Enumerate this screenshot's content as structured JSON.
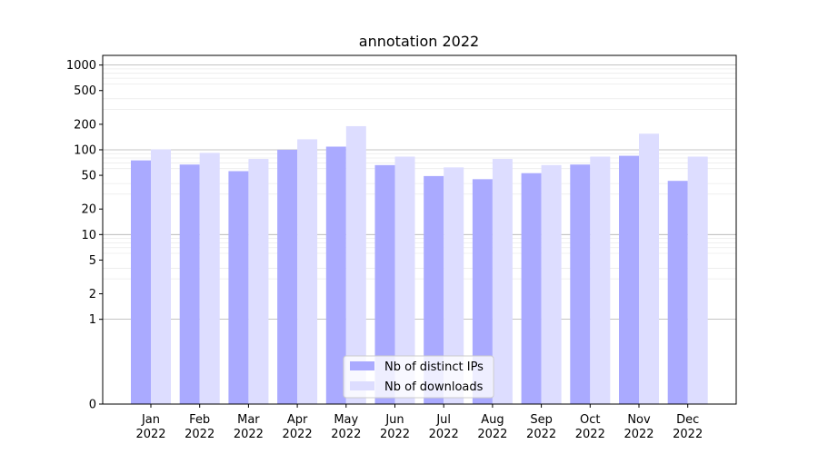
{
  "chart_data": {
    "type": "bar",
    "title": "annotation 2022",
    "xlabel": "",
    "ylabel": "",
    "yscale": "symlog",
    "ylim": [
      0,
      1300
    ],
    "categories": [
      "Jan",
      "Feb",
      "Mar",
      "Apr",
      "May",
      "Jun",
      "Jul",
      "Aug",
      "Sep",
      "Oct",
      "Nov",
      "Dec"
    ],
    "category_year": "2022",
    "yticks": [
      0,
      1,
      2,
      5,
      10,
      20,
      50,
      100,
      200,
      500,
      1000
    ],
    "ytick_labels": [
      "0",
      "1",
      "2",
      "5",
      "10",
      "20",
      "50",
      "100",
      "200",
      "500",
      "1000"
    ],
    "grid": true,
    "legend_position": "bottom-center",
    "series": [
      {
        "name": "Nb of distinct IPs",
        "color": "#aaaaff",
        "values": [
          75,
          67,
          56,
          100,
          109,
          66,
          49,
          45,
          53,
          67,
          85,
          43
        ]
      },
      {
        "name": "Nb of downloads",
        "color": "#ddddff",
        "values": [
          101,
          92,
          78,
          133,
          190,
          83,
          62,
          78,
          66,
          83,
          155,
          83
        ]
      }
    ]
  }
}
